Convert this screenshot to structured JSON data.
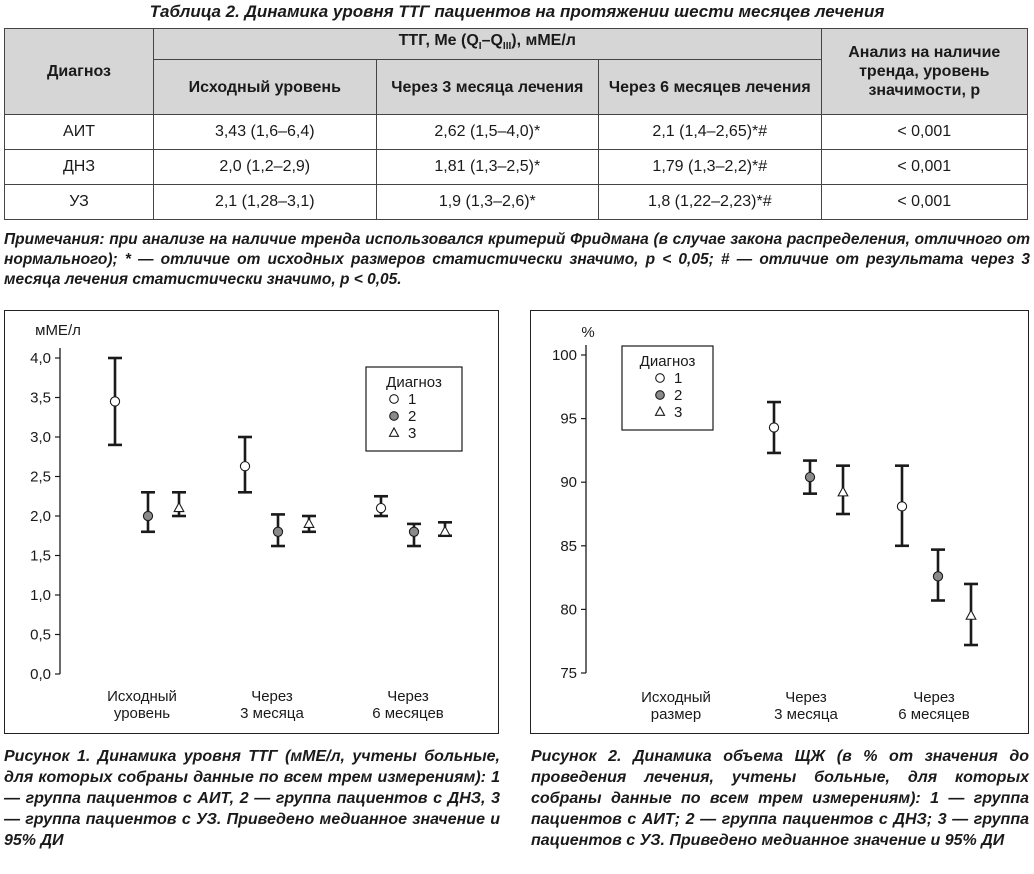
{
  "table": {
    "title": "Таблица 2.  Динамика уровня ТТГ пациентов на протяжении шести месяцев лечения",
    "col_diag": "Диагноз",
    "col_group": "ТТГ, Me (Q",
    "col_group_sub1": "I",
    "col_group_mid": "–Q",
    "col_group_sub2": "III",
    "col_group_tail": "), мМЕ/л",
    "col_baseline": "Исходный уровень",
    "col_3m": "Через 3 месяца лечения",
    "col_6m": "Через 6 месяцев лечения",
    "col_trend": "Анализ на наличие тренда, уровень значимости, р",
    "rows": [
      {
        "diag": "АИТ",
        "base": "3,43 (1,6–6,4)",
        "m3": "2,62 (1,5–4,0)*",
        "m6": "2,1 (1,4–2,65)*#",
        "p": "< 0,001"
      },
      {
        "diag": "ДНЗ",
        "base": "2,0 (1,2–2,9)",
        "m3": "1,81 (1,3–2,5)*",
        "m6": "1,79 (1,3–2,2)*#",
        "p": "< 0,001"
      },
      {
        "diag": "УЗ",
        "base": "2,1 (1,28–3,1)",
        "m3": "1,9 (1,3–2,6)*",
        "m6": "1,8 (1,22–2,23)*#",
        "p": "< 0,001"
      }
    ],
    "notes": "Примечания: при анализе на наличие тренда использовался критерий Фридмана (в случае закона распределения, отличного от нормального); * — отличие от исходных размеров статистически значимо, p < 0,05; # — отличие от результата через 3 месяца лечения статистически значимо, p < 0,05."
  },
  "chart_data": [
    {
      "type": "scatter",
      "ylabel": "мМЕ/л",
      "ylim": [
        0,
        4.0
      ],
      "yticks": [
        "0,0",
        "0,5",
        "1,0",
        "1,5",
        "2,0",
        "2,5",
        "3,0",
        "3,5",
        "4,0"
      ],
      "categories": [
        "Исходный уровень",
        "Через 3 месяца",
        "Через 6 месяцев"
      ],
      "category_lines": [
        [
          "Исходный",
          "уровень"
        ],
        [
          "Через",
          "3 месяца"
        ],
        [
          "Через",
          "6 месяцев"
        ]
      ],
      "legend_title": "Диагноз",
      "legend_position": "top-right",
      "series": [
        {
          "name": "1",
          "marker": "open-circle",
          "values": [
            3.45,
            2.63,
            2.1
          ],
          "lower": [
            2.9,
            2.3,
            2.0
          ],
          "upper": [
            4.0,
            3.0,
            2.25
          ]
        },
        {
          "name": "2",
          "marker": "filled-circle",
          "values": [
            2.0,
            1.8,
            1.8
          ],
          "lower": [
            1.8,
            1.62,
            1.62
          ],
          "upper": [
            2.3,
            2.02,
            1.9
          ]
        },
        {
          "name": "3",
          "marker": "triangle",
          "values": [
            2.1,
            1.9,
            1.8
          ],
          "lower": [
            2.0,
            1.8,
            1.75
          ],
          "upper": [
            2.3,
            2.0,
            1.92
          ]
        }
      ]
    },
    {
      "type": "scatter",
      "ylabel": "%",
      "ylim": [
        75,
        100
      ],
      "yticks": [
        "75",
        "80",
        "85",
        "90",
        "95",
        "100"
      ],
      "categories": [
        "Исходный размер",
        "Через 3 месяца",
        "Через 6 месяцев"
      ],
      "category_lines": [
        [
          "Исходный",
          "размер"
        ],
        [
          "Через",
          "3 месяца"
        ],
        [
          "Через",
          "6 месяцев"
        ]
      ],
      "legend_title": "Диагноз",
      "legend_position": "top-left",
      "series": [
        {
          "name": "1",
          "marker": "open-circle",
          "values": [
            null,
            94.3,
            88.1
          ],
          "lower": [
            null,
            92.3,
            85.0
          ],
          "upper": [
            null,
            96.3,
            91.3
          ]
        },
        {
          "name": "2",
          "marker": "filled-circle",
          "values": [
            null,
            90.4,
            82.6
          ],
          "lower": [
            null,
            89.1,
            80.7
          ],
          "upper": [
            null,
            91.7,
            84.7
          ]
        },
        {
          "name": "3",
          "marker": "triangle",
          "values": [
            null,
            89.2,
            79.5
          ],
          "lower": [
            null,
            87.5,
            77.2
          ],
          "upper": [
            null,
            91.3,
            82.0
          ]
        }
      ]
    }
  ],
  "figures": {
    "fig1_caption": "Рисунок 1. Динамика уровня ТТГ (мМЕ/л, учтены больные, для которых собраны данные по всем трем измерениям): 1 — группа пациентов с АИТ, 2 — группа пациентов с ДНЗ, 3 — группа пациентов с УЗ. Приведено медианное значение и 95% ДИ",
    "fig2_caption": "Рисунок 2. Динамика объема ЩЖ (в % от значения до проведения лечения, учтены больные, для которых собраны данные по всем трем измерениям): 1 — группа пациентов с АИТ; 2 — группа пациентов с ДНЗ; 3 — группа пациентов с УЗ. Приведено медианное значение и 95% ДИ"
  },
  "colors": {
    "header_bg": "#d6d6d6",
    "filled_marker": "#8a8a8a",
    "ink": "#1a1a1a"
  }
}
